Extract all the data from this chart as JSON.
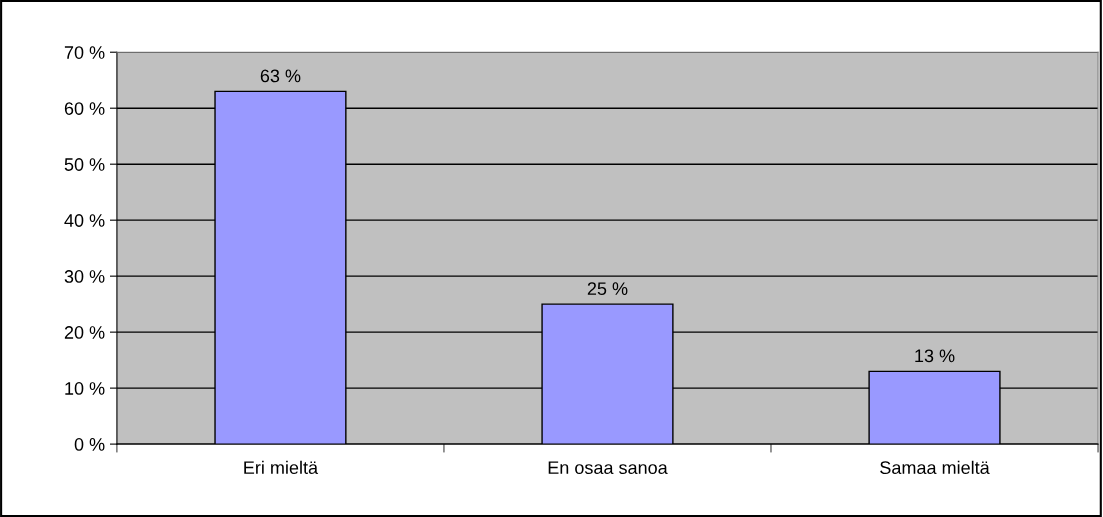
{
  "chart_data": {
    "type": "bar",
    "categories": [
      "Eri mieltä",
      "En osaa sanoa",
      "Samaa mieltä"
    ],
    "values": [
      63,
      25,
      13
    ],
    "color": "#9999ff",
    "value_labels": [
      "63 %",
      "25 %",
      "13 %"
    ],
    "ylim": [
      0,
      70
    ],
    "yticks": [
      {
        "value": 0,
        "label": "0 %"
      },
      {
        "value": 10,
        "label": "10 %"
      },
      {
        "value": 20,
        "label": "20 %"
      },
      {
        "value": 30,
        "label": "30 %"
      },
      {
        "value": 40,
        "label": "40 %"
      },
      {
        "value": 50,
        "label": "50 %"
      },
      {
        "value": 60,
        "label": "60 %"
      },
      {
        "value": 70,
        "label": "70 %"
      }
    ],
    "grid": "y",
    "legend": false
  }
}
